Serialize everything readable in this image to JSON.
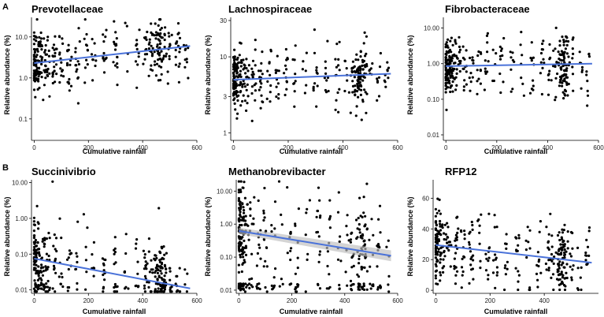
{
  "figure": {
    "row_labels": [
      "A",
      "B"
    ],
    "trend_color": "#4a72d9",
    "ci_color": "#bdbdbd",
    "point_color": "#000000"
  },
  "chart_data": [
    {
      "type": "scatter",
      "title": "Prevotellaceae",
      "xlabel": "Cumulative rainfall",
      "ylabel": "Relative abundance (%)",
      "yscale": "log",
      "ylim": [
        0.03,
        30
      ],
      "yticks": [
        0.1,
        1.0,
        10.0
      ],
      "ytick_labels": [
        "0.1",
        "1.0",
        "10.0"
      ],
      "xlim": [
        -10,
        600
      ],
      "xticks": [
        0,
        200,
        400,
        600
      ],
      "xtick_labels": [
        "0",
        "200",
        "400",
        "600"
      ],
      "trend": {
        "x": [
          0,
          575
        ],
        "y": [
          2.3,
          6.0
        ]
      },
      "points": {
        "n": 380,
        "center_log": 0.45,
        "spread_log": 0.38,
        "seed": 11,
        "cluster": 2
      }
    },
    {
      "type": "scatter",
      "title": "Lachnospiraceae",
      "xlabel": "Cumulative rainfall",
      "ylabel": "Relative abundance (%)",
      "yscale": "log",
      "ylim": [
        0.8,
        33
      ],
      "yticks": [
        1,
        3,
        10,
        30
      ],
      "ytick_labels": [
        "1",
        "3",
        "10",
        "30"
      ],
      "xlim": [
        -10,
        600
      ],
      "xticks": [
        0,
        200,
        400,
        600
      ],
      "xtick_labels": [
        "0",
        "200",
        "400",
        "600"
      ],
      "trend": {
        "x": [
          0,
          575
        ],
        "y": [
          5.0,
          6.0
        ]
      },
      "points": {
        "n": 380,
        "center_log": 0.72,
        "spread_log": 0.2,
        "seed": 23,
        "cluster": 2
      }
    },
    {
      "type": "scatter",
      "title": "Fibrobacteraceae",
      "xlabel": "Cumulative rainfall",
      "ylabel": "Relative abundance (%)",
      "yscale": "log",
      "ylim": [
        0.007,
        20
      ],
      "yticks": [
        0.01,
        0.1,
        1.0,
        10.0
      ],
      "ytick_labels": [
        "0.01",
        "0.10",
        "1.00",
        "10.00"
      ],
      "xlim": [
        -10,
        600
      ],
      "xticks": [
        0,
        200,
        400,
        600
      ],
      "xtick_labels": [
        "0",
        "200",
        "400",
        "600"
      ],
      "trend": {
        "x": [
          0,
          575
        ],
        "y": [
          0.85,
          1.0
        ]
      },
      "points": {
        "n": 380,
        "center_log": -0.05,
        "spread_log": 0.42,
        "seed": 37,
        "cluster": 2
      }
    },
    {
      "type": "scatter",
      "title": "Succinivibrio",
      "xlabel": "Cumulative rainfall",
      "ylabel": "Relative abundance (%)",
      "yscale": "log",
      "ylim": [
        0.008,
        12
      ],
      "yticks": [
        0.01,
        0.1,
        1.0,
        10.0
      ],
      "ytick_labels": [
        "0.01",
        "0.10",
        "1.00",
        "10.00"
      ],
      "xlim": [
        -10,
        600
      ],
      "xticks": [
        0,
        200,
        400,
        600
      ],
      "xtick_labels": [
        "0",
        "200",
        "400",
        "600"
      ],
      "trend": {
        "x": [
          0,
          575
        ],
        "y": [
          0.075,
          0.011
        ]
      },
      "points": {
        "n": 380,
        "center_log": -1.5,
        "spread_log": 0.5,
        "seed": 51,
        "cluster": 3,
        "floor": 0.01
      }
    },
    {
      "type": "scatter",
      "title": "Methanobrevibacter",
      "xlabel": "Cumulative rainfall",
      "ylabel": "Relative abundance (%)",
      "yscale": "log",
      "ylim": [
        0.008,
        22
      ],
      "yticks": [
        0.01,
        0.1,
        1.0,
        10.0
      ],
      "ytick_labels": [
        "0.01",
        "0.10",
        "1.00",
        "10.00"
      ],
      "xlim": [
        -10,
        600
      ],
      "xticks": [
        0,
        200,
        400,
        600
      ],
      "xtick_labels": [
        "0",
        "200",
        "400",
        "600"
      ],
      "trend": {
        "x": [
          0,
          575
        ],
        "y": [
          0.62,
          0.11
        ]
      },
      "ci": {
        "x": [
          0,
          575
        ],
        "lower": [
          0.5,
          0.075
        ],
        "upper": [
          0.78,
          0.16
        ]
      },
      "points": {
        "n": 420,
        "center_log": -0.4,
        "spread_log": 0.75,
        "seed": 67,
        "cluster": 3,
        "floor": 0.01
      }
    },
    {
      "type": "scatter",
      "title": "RFP12",
      "xlabel": "Cumulative rainfall",
      "ylabel": "Relative abundance (%)",
      "yscale": "linear",
      "ylim": [
        -2,
        72
      ],
      "yticks": [
        0,
        20,
        40,
        60
      ],
      "ytick_labels": [
        "0",
        "20",
        "40",
        "60"
      ],
      "xlim": [
        -10,
        600
      ],
      "xticks": [
        0,
        200,
        400
      ],
      "xtick_labels": [
        "0",
        "200",
        "400"
      ],
      "trend": {
        "x": [
          0,
          575
        ],
        "y": [
          29.5,
          18
        ]
      },
      "points": {
        "n": 380,
        "center_lin": 24,
        "spread_lin": 12,
        "seed": 83,
        "cluster": 2
      }
    }
  ]
}
